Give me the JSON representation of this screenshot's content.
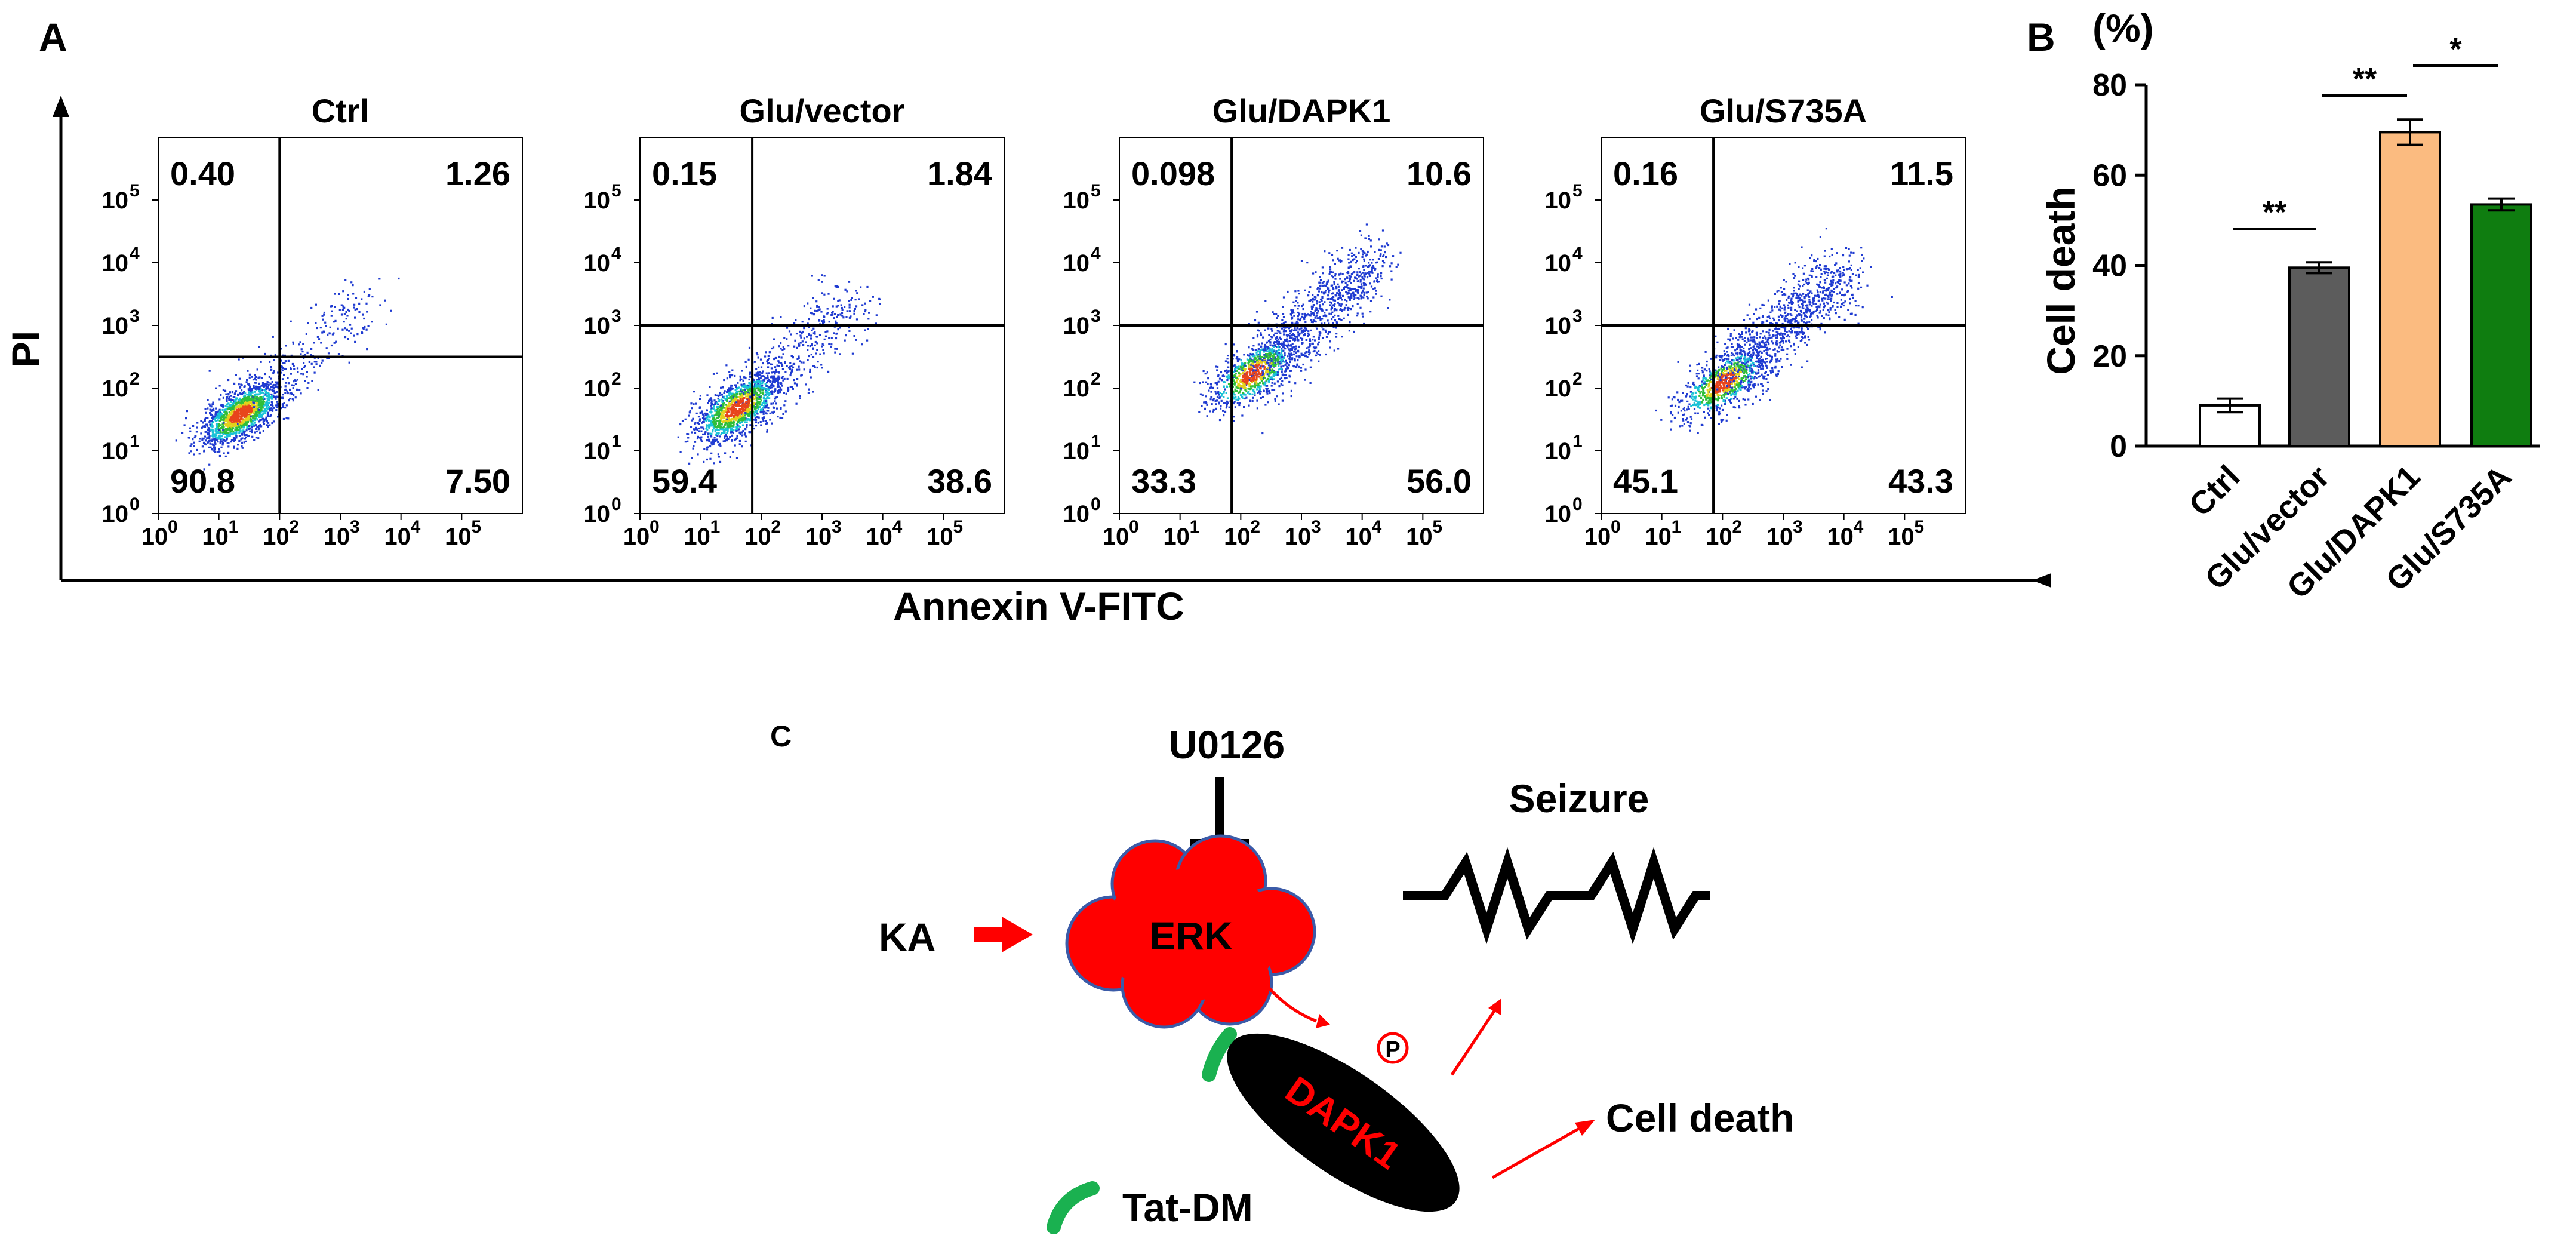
{
  "panel_labels": {
    "a": "A",
    "b": "B",
    "c": "C"
  },
  "colors": {
    "dot_blue": "#1f3bd1",
    "dot_cyan": "#19c2d6",
    "dot_green": "#2fbf3a",
    "dot_yellow": "#e2d21c",
    "dot_red": "#e8451c",
    "bar_ctrl": "#ffffff",
    "bar_glu_vector": "#5c5c5c",
    "bar_glu_dapk1": "#fbbb80",
    "bar_glu_s735a": "#0f7d10",
    "erk_red": "#ff0000",
    "erk_outline": "#3b5ba8",
    "green_arc": "#1ab150"
  },
  "flow": {
    "y_axis_label": "PI",
    "x_axis_label": "Annexin V-FITC",
    "tick_base": "10",
    "tick_exponents": [
      "0",
      "1",
      "2",
      "3",
      "4",
      "5"
    ],
    "panels": [
      {
        "title": "Ctrl",
        "q_ul": "0.40",
        "q_ur": "1.26",
        "q_ll": "90.8",
        "q_lr": "7.50",
        "gate_x_log": 2.0,
        "gate_y_log": 2.5,
        "cluster_x": 1.35,
        "cluster_y": 1.6,
        "spread": 0.55,
        "tail": 0.15
      },
      {
        "title": "Glu/vector",
        "q_ul": "0.15",
        "q_ur": "1.84",
        "q_ll": "59.4",
        "q_lr": "38.6",
        "gate_x_log": 1.85,
        "gate_y_log": 3.0,
        "cluster_x": 1.6,
        "cluster_y": 1.7,
        "spread": 0.6,
        "tail": 0.25
      },
      {
        "title": "Glu/DAPK1",
        "q_ul": "0.098",
        "q_ur": "10.6",
        "q_ll": "33.3",
        "q_lr": "56.0",
        "gate_x_log": 1.85,
        "gate_y_log": 3.0,
        "cluster_x": 2.2,
        "cluster_y": 2.25,
        "spread": 0.6,
        "tail": 0.55
      },
      {
        "title": "Glu/S735A",
        "q_ul": "0.16",
        "q_ur": "11.5",
        "q_ll": "45.1",
        "q_lr": "43.3",
        "gate_x_log": 1.85,
        "gate_y_log": 3.0,
        "cluster_x": 2.0,
        "cluster_y": 2.1,
        "spread": 0.6,
        "tail": 0.55
      }
    ]
  },
  "chart_data": {
    "type": "bar",
    "title": "",
    "xlabel": "",
    "ylabel": "Cell death",
    "yunit": "(%)",
    "categories": [
      "Ctrl",
      "Glu/vector",
      "Glu/DAPK1",
      "Glu/S735A"
    ],
    "values": [
      9,
      39.5,
      69.5,
      53.5
    ],
    "errors": [
      1.5,
      1.2,
      2.8,
      1.3
    ],
    "ylim": [
      0,
      80
    ],
    "yticks": [
      "0",
      "20",
      "40",
      "60",
      "80"
    ],
    "significance": [
      {
        "from": 0,
        "to": 1,
        "label": "**"
      },
      {
        "from": 1,
        "to": 2,
        "label": "**"
      },
      {
        "from": 2,
        "to": 3,
        "label": "*"
      }
    ]
  },
  "diagram": {
    "u0126": "U0126",
    "seizure": "Seizure",
    "ka": "KA",
    "erk": "ERK",
    "phospho": "P",
    "dapk1": "DAPK1",
    "cell_death": "Cell death",
    "tat_dm": "Tat-DM"
  }
}
